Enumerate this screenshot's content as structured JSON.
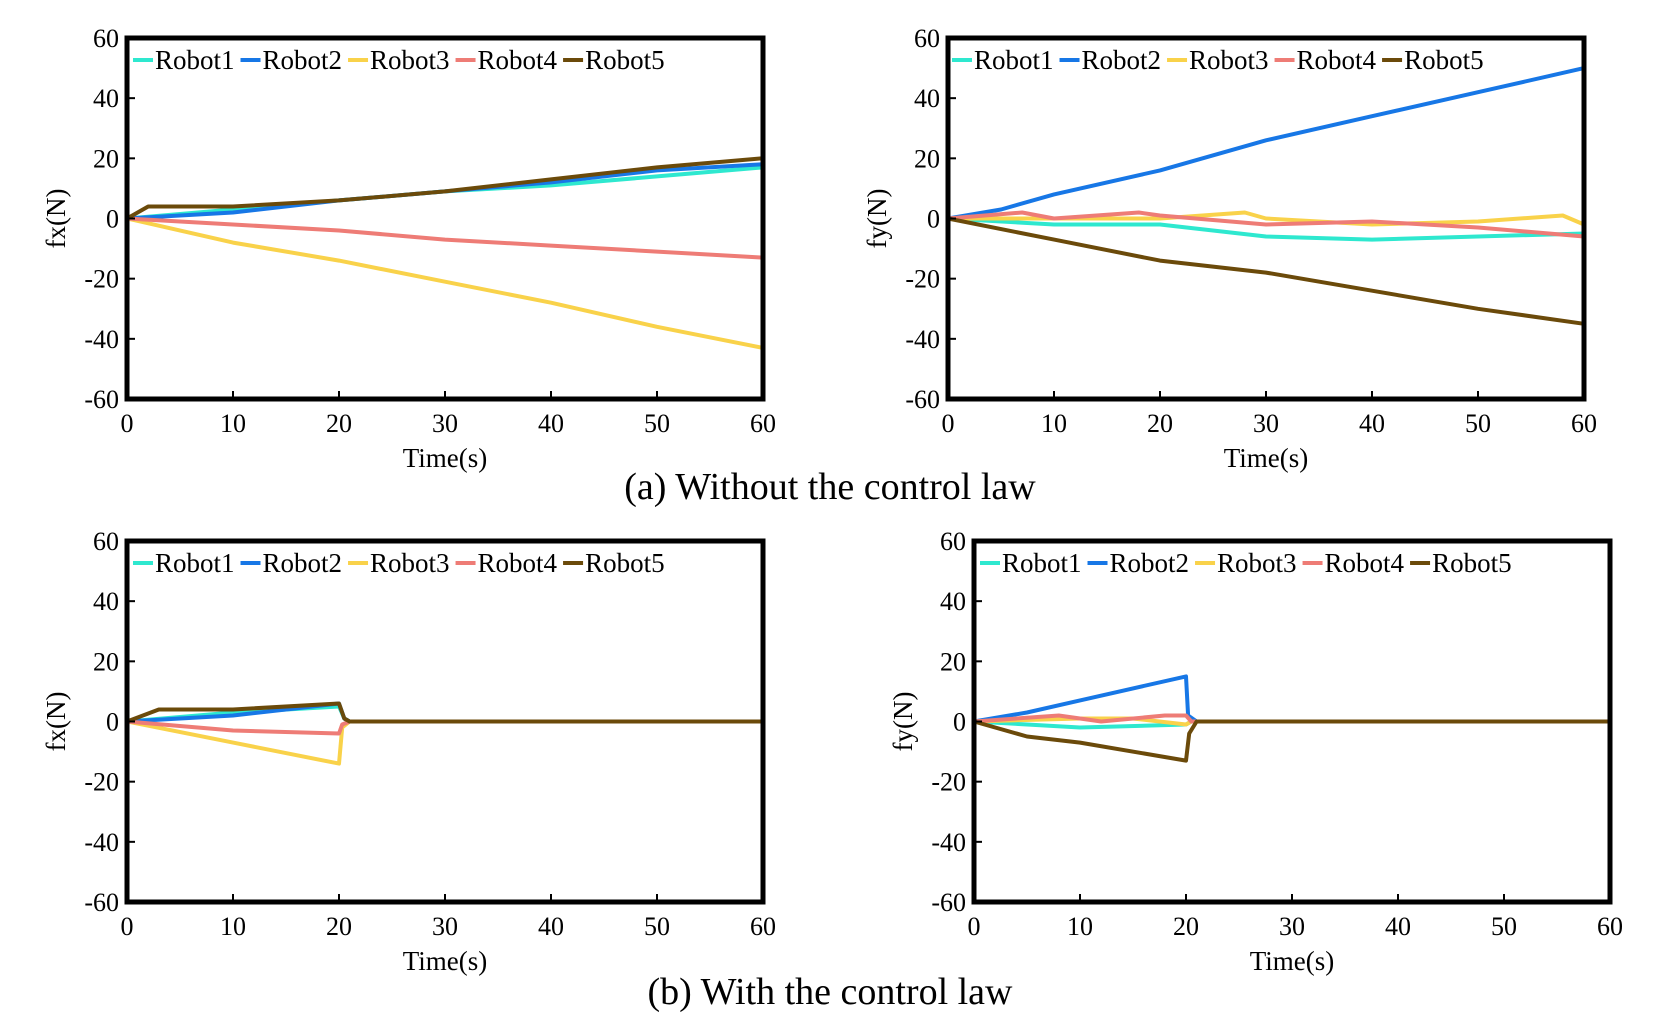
{
  "captions": {
    "top": "(a) Without the control law",
    "bottom": "(b) With the control law"
  },
  "legend_labels": [
    "Robot1",
    "Robot2",
    "Robot3",
    "Robot4",
    "Robot5"
  ],
  "colors": {
    "Robot1": "#2ee8cf",
    "Robot2": "#1777e6",
    "Robot3": "#f9d24a",
    "Robot4": "#ee7c76",
    "Robot5": "#6b4a0a"
  },
  "chart_data": [
    {
      "id": "a-fx",
      "type": "line",
      "xlabel": "Time(s)",
      "ylabel": "fx(N)",
      "xlim": [
        0,
        60
      ],
      "ylim": [
        -60,
        60
      ],
      "xticks": [
        0,
        10,
        20,
        30,
        40,
        50,
        60
      ],
      "yticks": [
        -60,
        -40,
        -20,
        0,
        20,
        40,
        60
      ],
      "legend": "top",
      "series": [
        {
          "name": "Robot1",
          "x": [
            0,
            10,
            20,
            30,
            40,
            50,
            60
          ],
          "y": [
            0,
            3,
            6,
            9,
            11,
            14,
            17
          ]
        },
        {
          "name": "Robot2",
          "x": [
            0,
            10,
            20,
            30,
            40,
            50,
            60
          ],
          "y": [
            0,
            2,
            6,
            9,
            12,
            16,
            18
          ]
        },
        {
          "name": "Robot3",
          "x": [
            0,
            10,
            20,
            30,
            40,
            50,
            60
          ],
          "y": [
            0,
            -8,
            -14,
            -21,
            -28,
            -36,
            -43
          ]
        },
        {
          "name": "Robot4",
          "x": [
            0,
            10,
            20,
            30,
            40,
            50,
            60
          ],
          "y": [
            0,
            -2,
            -4,
            -7,
            -9,
            -11,
            -13
          ]
        },
        {
          "name": "Robot5",
          "x": [
            0,
            2,
            10,
            20,
            30,
            40,
            50,
            60
          ],
          "y": [
            0,
            4,
            4,
            6,
            9,
            13,
            17,
            20
          ]
        }
      ]
    },
    {
      "id": "a-fy",
      "type": "line",
      "xlabel": "Time(s)",
      "ylabel": "fy(N)",
      "xlim": [
        0,
        60
      ],
      "ylim": [
        -60,
        60
      ],
      "xticks": [
        0,
        10,
        20,
        30,
        40,
        50,
        60
      ],
      "yticks": [
        -60,
        -40,
        -20,
        0,
        20,
        40,
        60
      ],
      "legend": "top",
      "series": [
        {
          "name": "Robot1",
          "x": [
            0,
            10,
            20,
            30,
            40,
            50,
            60
          ],
          "y": [
            0,
            -2,
            -2,
            -6,
            -7,
            -6,
            -5
          ]
        },
        {
          "name": "Robot2",
          "x": [
            0,
            5,
            10,
            20,
            30,
            40,
            50,
            60
          ],
          "y": [
            0,
            3,
            8,
            16,
            26,
            34,
            42,
            50
          ]
        },
        {
          "name": "Robot3",
          "x": [
            0,
            10,
            20,
            28,
            30,
            40,
            50,
            58,
            60
          ],
          "y": [
            0,
            0,
            0,
            2,
            0,
            -2,
            -1,
            1,
            -2
          ]
        },
        {
          "name": "Robot4",
          "x": [
            0,
            7,
            10,
            18,
            20,
            30,
            40,
            50,
            60
          ],
          "y": [
            0,
            2,
            0,
            2,
            1,
            -2,
            -1,
            -3,
            -6
          ]
        },
        {
          "name": "Robot5",
          "x": [
            0,
            10,
            20,
            30,
            40,
            50,
            60
          ],
          "y": [
            0,
            -7,
            -14,
            -18,
            -24,
            -30,
            -35
          ]
        }
      ]
    },
    {
      "id": "b-fx",
      "type": "line",
      "xlabel": "Time(s)",
      "ylabel": "fx(N)",
      "xlim": [
        0,
        60
      ],
      "ylim": [
        -60,
        60
      ],
      "xticks": [
        0,
        10,
        20,
        30,
        40,
        50,
        60
      ],
      "yticks": [
        -60,
        -40,
        -20,
        0,
        20,
        40,
        60
      ],
      "legend": "top",
      "series": [
        {
          "name": "Robot1",
          "x": [
            0,
            10,
            20,
            20.5,
            21,
            60
          ],
          "y": [
            0,
            3,
            5,
            1,
            0,
            0
          ]
        },
        {
          "name": "Robot2",
          "x": [
            0,
            10,
            20,
            20.5,
            21,
            60
          ],
          "y": [
            0,
            2,
            6,
            1,
            0,
            0
          ]
        },
        {
          "name": "Robot3",
          "x": [
            0,
            10,
            20,
            20.3,
            21,
            60
          ],
          "y": [
            0,
            -7,
            -14,
            -2,
            0,
            0
          ]
        },
        {
          "name": "Robot4",
          "x": [
            0,
            10,
            20,
            20.3,
            21,
            60
          ],
          "y": [
            0,
            -3,
            -4,
            -1,
            0,
            0
          ]
        },
        {
          "name": "Robot5",
          "x": [
            0,
            3,
            10,
            20,
            20.5,
            21,
            60
          ],
          "y": [
            0,
            4,
            4,
            6,
            1,
            0,
            0
          ]
        }
      ]
    },
    {
      "id": "b-fy",
      "type": "line",
      "xlabel": "Time(s)",
      "ylabel": "fy(N)",
      "xlim": [
        0,
        60
      ],
      "ylim": [
        -60,
        60
      ],
      "xticks": [
        0,
        10,
        20,
        30,
        40,
        50,
        60
      ],
      "yticks": [
        -60,
        -40,
        -20,
        0,
        20,
        40,
        60
      ],
      "legend": "top",
      "series": [
        {
          "name": "Robot1",
          "x": [
            0,
            5,
            10,
            20,
            20.5,
            60
          ],
          "y": [
            0,
            -1,
            -2,
            -1,
            0,
            0
          ]
        },
        {
          "name": "Robot2",
          "x": [
            0,
            5,
            10,
            20,
            20.2,
            21,
            60
          ],
          "y": [
            0,
            3,
            7,
            15,
            2,
            0,
            0
          ]
        },
        {
          "name": "Robot3",
          "x": [
            0,
            10,
            15,
            20,
            20.5,
            60
          ],
          "y": [
            0,
            1,
            1,
            -1,
            0,
            0
          ]
        },
        {
          "name": "Robot4",
          "x": [
            0,
            8,
            12,
            18,
            20,
            20.5,
            60
          ],
          "y": [
            0,
            2,
            0,
            2,
            2,
            0,
            0
          ]
        },
        {
          "name": "Robot5",
          "x": [
            0,
            5,
            10,
            20,
            20.3,
            21,
            60
          ],
          "y": [
            0,
            -5,
            -7,
            -13,
            -4,
            0,
            0
          ]
        }
      ]
    }
  ]
}
